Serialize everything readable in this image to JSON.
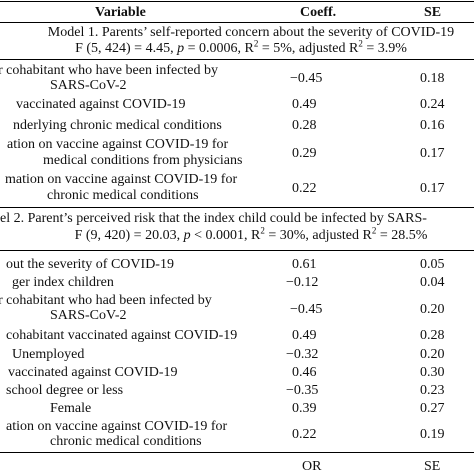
{
  "header": {
    "variable": "Variable",
    "coeff": "Coeff.",
    "se": "SE"
  },
  "model1": {
    "title": "Model 1. Parents’ self-reported concern about the severity of COVID-19",
    "stats_pre": "F (5, 424) = 4.45, ",
    "p_sym": "p",
    "stats_mid": " = 0.0006, R",
    "sup1": "2",
    "stats_mid2": " = 5%, adjusted R",
    "sup2": "2",
    "stats_end": " = 3.9%",
    "rows": [
      {
        "l1": "r cohabitant who have been infected by",
        "l2": "SARS-CoV-2",
        "coef": "−0.45",
        "se": "0.18"
      },
      {
        "l1": "vaccinated against COVID-19",
        "coef": "0.49",
        "se": "0.24"
      },
      {
        "l1": "nderlying chronic medical conditions",
        "coef": "0.28",
        "se": "0.16"
      },
      {
        "l1": "ation on vaccine against COVID-19 for",
        "l2": "medical conditions from physicians",
        "coef": "0.29",
        "se": "0.17"
      },
      {
        "l1": "mation on vaccine against COVID-19 for",
        "l2": "chronic medical conditions",
        "coef": "0.22",
        "se": "0.17"
      }
    ]
  },
  "model2": {
    "title": "el 2. Parent’s perceived risk that the index child could be infected by SARS-",
    "stats_pre": "F (9, 420) = 20.03, ",
    "p_sym": "p",
    "stats_mid": " < 0.0001, R",
    "sup1": "2",
    "stats_mid2": " = 30%, adjusted R",
    "sup2": "2",
    "stats_end": " = 28.5%",
    "rows": [
      {
        "l1": "out the severity of COVID-19",
        "coef": "0.61",
        "se": "0.05"
      },
      {
        "l1": "ger index children",
        "coef": "−0.12",
        "se": "0.04"
      },
      {
        "l1": "r cohabitant who had been infected by",
        "l2": "SARS-CoV-2",
        "coef": "−0.45",
        "se": "0.20"
      },
      {
        "l1": "cohabitant vaccinated against COVID-19",
        "coef": "0.49",
        "se": "0.28"
      },
      {
        "l1": "Unemployed",
        "coef": "−0.32",
        "se": "0.20"
      },
      {
        "l1": "vaccinated against COVID-19",
        "coef": "0.46",
        "se": "0.30"
      },
      {
        "l1": "school degree or less",
        "coef": "−0.35",
        "se": "0.23"
      },
      {
        "l1": "Female",
        "coef": "0.39",
        "se": "0.27"
      },
      {
        "l1": "ation on vaccine against COVID-19 for",
        "l2": "chronic medical conditions",
        "coef": "0.22",
        "se": "0.19"
      }
    ]
  },
  "footer": {
    "or": "OR",
    "se": "SE"
  }
}
